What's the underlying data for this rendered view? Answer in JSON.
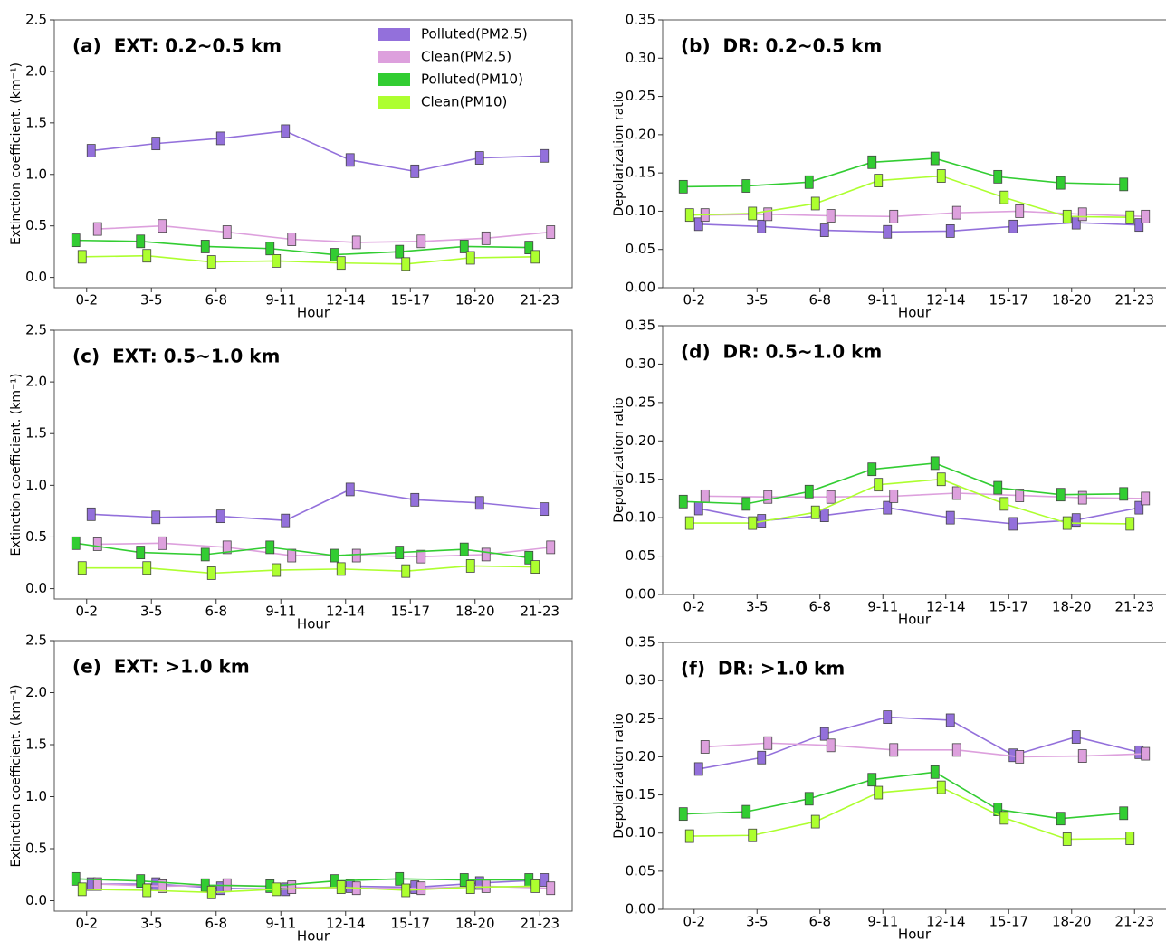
{
  "chart_data": [
    {
      "type": "line",
      "title": "(a)  EXT: 0.2~0.5 km",
      "xlabel": "Hour",
      "ylabel": "Extinction coefficient. (km⁻¹)",
      "categories": [
        "0-2",
        "3-5",
        "6-8",
        "9-11",
        "12-14",
        "15-17",
        "18-20",
        "21-23"
      ],
      "ylim": [
        -0.1,
        2.5
      ],
      "yticks": [
        {
          "value": 0,
          "label": "0.0"
        },
        0.5,
        {
          "value": 1,
          "label": "1.0"
        },
        1.5,
        {
          "value": 2,
          "label": "2.0"
        },
        2.5
      ],
      "legend": "upper right",
      "series": [
        {
          "name": "Polluted(PM2.5)",
          "color": "#9370db",
          "values": [
            1.23,
            1.3,
            1.35,
            1.42,
            1.14,
            1.03,
            1.16,
            1.18
          ]
        },
        {
          "name": "Clean(PM2.5)",
          "color": "#dda0dd",
          "values": [
            0.47,
            0.5,
            0.44,
            0.37,
            0.34,
            0.35,
            0.38,
            0.44
          ]
        },
        {
          "name": "Polluted(PM10)",
          "color": "#32cd32",
          "values": [
            0.36,
            0.35,
            0.3,
            0.28,
            0.22,
            0.25,
            0.3,
            0.29
          ]
        },
        {
          "name": "Clean(PM10)",
          "color": "#adff2f",
          "values": [
            0.2,
            0.21,
            0.15,
            0.16,
            0.14,
            0.13,
            0.19,
            0.2
          ]
        }
      ]
    },
    {
      "type": "line",
      "title": "(b)  DR: 0.2~0.5 km",
      "xlabel": "Hour",
      "ylabel": "Depolarization ratio",
      "categories": [
        "0-2",
        "3-5",
        "6-8",
        "9-11",
        "12-14",
        "15-17",
        "18-20",
        "21-23"
      ],
      "ylim": [
        0,
        0.35
      ],
      "yticks": [
        {
          "value": 0,
          "label": "0.00"
        },
        0.05,
        {
          "value": 0.1,
          "label": "0.10"
        },
        0.15,
        {
          "value": 0.2,
          "label": "0.20"
        },
        0.25,
        {
          "value": 0.3,
          "label": "0.30"
        },
        0.35
      ],
      "series": [
        {
          "color": "#9370db",
          "values": [
            0.083,
            0.08,
            0.075,
            0.073,
            0.074,
            0.08,
            0.085,
            0.082
          ]
        },
        {
          "color": "#dda0dd",
          "values": [
            0.095,
            0.096,
            0.094,
            0.093,
            0.098,
            0.1,
            0.096,
            0.093
          ]
        },
        {
          "color": "#32cd32",
          "values": [
            0.132,
            0.133,
            0.138,
            0.164,
            0.169,
            0.145,
            0.137,
            0.135
          ]
        },
        {
          "color": "#adff2f",
          "values": [
            0.095,
            0.097,
            0.11,
            0.14,
            0.146,
            0.118,
            0.093,
            0.092
          ]
        }
      ]
    },
    {
      "type": "line",
      "title": "(c)  EXT: 0.5~1.0 km",
      "xlabel": "Hour",
      "ylabel": "Extinction coefficient. (km⁻¹)",
      "categories": [
        "0-2",
        "3-5",
        "6-8",
        "9-11",
        "12-14",
        "15-17",
        "18-20",
        "21-23"
      ],
      "ylim": [
        -0.1,
        2.5
      ],
      "yticks": [
        {
          "value": 0,
          "label": "0.0"
        },
        0.5,
        {
          "value": 1,
          "label": "1.0"
        },
        1.5,
        {
          "value": 2,
          "label": "2.0"
        },
        2.5
      ],
      "series": [
        {
          "color": "#9370db",
          "values": [
            0.72,
            0.69,
            0.7,
            0.66,
            0.96,
            0.86,
            0.83,
            0.77
          ]
        },
        {
          "color": "#dda0dd",
          "values": [
            0.43,
            0.44,
            0.4,
            0.32,
            0.32,
            0.31,
            0.33,
            0.4
          ]
        },
        {
          "color": "#32cd32",
          "values": [
            0.44,
            0.35,
            0.33,
            0.4,
            0.32,
            0.35,
            0.38,
            0.3
          ]
        },
        {
          "color": "#adff2f",
          "values": [
            0.2,
            0.2,
            0.15,
            0.18,
            0.19,
            0.17,
            0.22,
            0.21
          ]
        }
      ]
    },
    {
      "type": "line",
      "title": "(d)  DR: 0.5~1.0 km",
      "xlabel": "Hour",
      "ylabel": "Depolarization ratio",
      "categories": [
        "0-2",
        "3-5",
        "6-8",
        "9-11",
        "12-14",
        "15-17",
        "18-20",
        "21-23"
      ],
      "ylim": [
        0,
        0.35
      ],
      "yticks": [
        {
          "value": 0,
          "label": "0.00"
        },
        0.05,
        {
          "value": 0.1,
          "label": "0.10"
        },
        0.15,
        {
          "value": 0.2,
          "label": "0.20"
        },
        0.25,
        {
          "value": 0.3,
          "label": "0.30"
        },
        0.35
      ],
      "series": [
        {
          "color": "#9370db",
          "values": [
            0.112,
            0.096,
            0.103,
            0.113,
            0.1,
            0.092,
            0.097,
            0.113
          ]
        },
        {
          "color": "#dda0dd",
          "values": [
            0.128,
            0.127,
            0.127,
            0.128,
            0.132,
            0.129,
            0.126,
            0.125
          ]
        },
        {
          "color": "#32cd32",
          "values": [
            0.121,
            0.118,
            0.134,
            0.163,
            0.171,
            0.139,
            0.13,
            0.131
          ]
        },
        {
          "color": "#adff2f",
          "values": [
            0.093,
            0.093,
            0.107,
            0.143,
            0.15,
            0.118,
            0.093,
            0.092
          ]
        }
      ]
    },
    {
      "type": "line",
      "title": "(e)  EXT: >1.0 km",
      "xlabel": "Hour",
      "ylabel": "Extinction coefficient. (km⁻¹)",
      "categories": [
        "0-2",
        "3-5",
        "6-8",
        "9-11",
        "12-14",
        "15-17",
        "18-20",
        "21-23"
      ],
      "ylim": [
        -0.1,
        2.5
      ],
      "yticks": [
        {
          "value": 0,
          "label": "0.0"
        },
        0.5,
        {
          "value": 1,
          "label": "1.0"
        },
        1.5,
        {
          "value": 2,
          "label": "2.0"
        },
        2.5
      ],
      "series": [
        {
          "color": "#9370db",
          "values": [
            0.16,
            0.16,
            0.12,
            0.11,
            0.14,
            0.13,
            0.17,
            0.2
          ]
        },
        {
          "color": "#dda0dd",
          "values": [
            0.16,
            0.14,
            0.15,
            0.13,
            0.12,
            0.12,
            0.14,
            0.12
          ]
        },
        {
          "color": "#32cd32",
          "values": [
            0.21,
            0.19,
            0.15,
            0.14,
            0.19,
            0.21,
            0.2,
            0.2
          ]
        },
        {
          "color": "#adff2f",
          "values": [
            0.11,
            0.1,
            0.08,
            0.11,
            0.13,
            0.1,
            0.13,
            0.14
          ]
        }
      ]
    },
    {
      "type": "line",
      "title": "(f)  DR: >1.0 km",
      "xlabel": "Hour",
      "ylabel": "Depolarization ratio",
      "categories": [
        "0-2",
        "3-5",
        "6-8",
        "9-11",
        "12-14",
        "15-17",
        "18-20",
        "21-23"
      ],
      "ylim": [
        0,
        0.35
      ],
      "yticks": [
        {
          "value": 0,
          "label": "0.00"
        },
        0.05,
        {
          "value": 0.1,
          "label": "0.10"
        },
        0.15,
        {
          "value": 0.2,
          "label": "0.20"
        },
        0.25,
        {
          "value": 0.3,
          "label": "0.30"
        },
        0.35
      ],
      "series": [
        {
          "color": "#9370db",
          "values": [
            0.184,
            0.199,
            0.23,
            0.252,
            0.248,
            0.202,
            0.226,
            0.206
          ]
        },
        {
          "color": "#dda0dd",
          "values": [
            0.213,
            0.218,
            0.215,
            0.209,
            0.209,
            0.2,
            0.201,
            0.204
          ]
        },
        {
          "color": "#32cd32",
          "values": [
            0.125,
            0.128,
            0.145,
            0.17,
            0.18,
            0.131,
            0.119,
            0.126
          ]
        },
        {
          "color": "#adff2f",
          "values": [
            0.096,
            0.097,
            0.115,
            0.153,
            0.16,
            0.12,
            0.092,
            0.093
          ]
        }
      ]
    }
  ]
}
